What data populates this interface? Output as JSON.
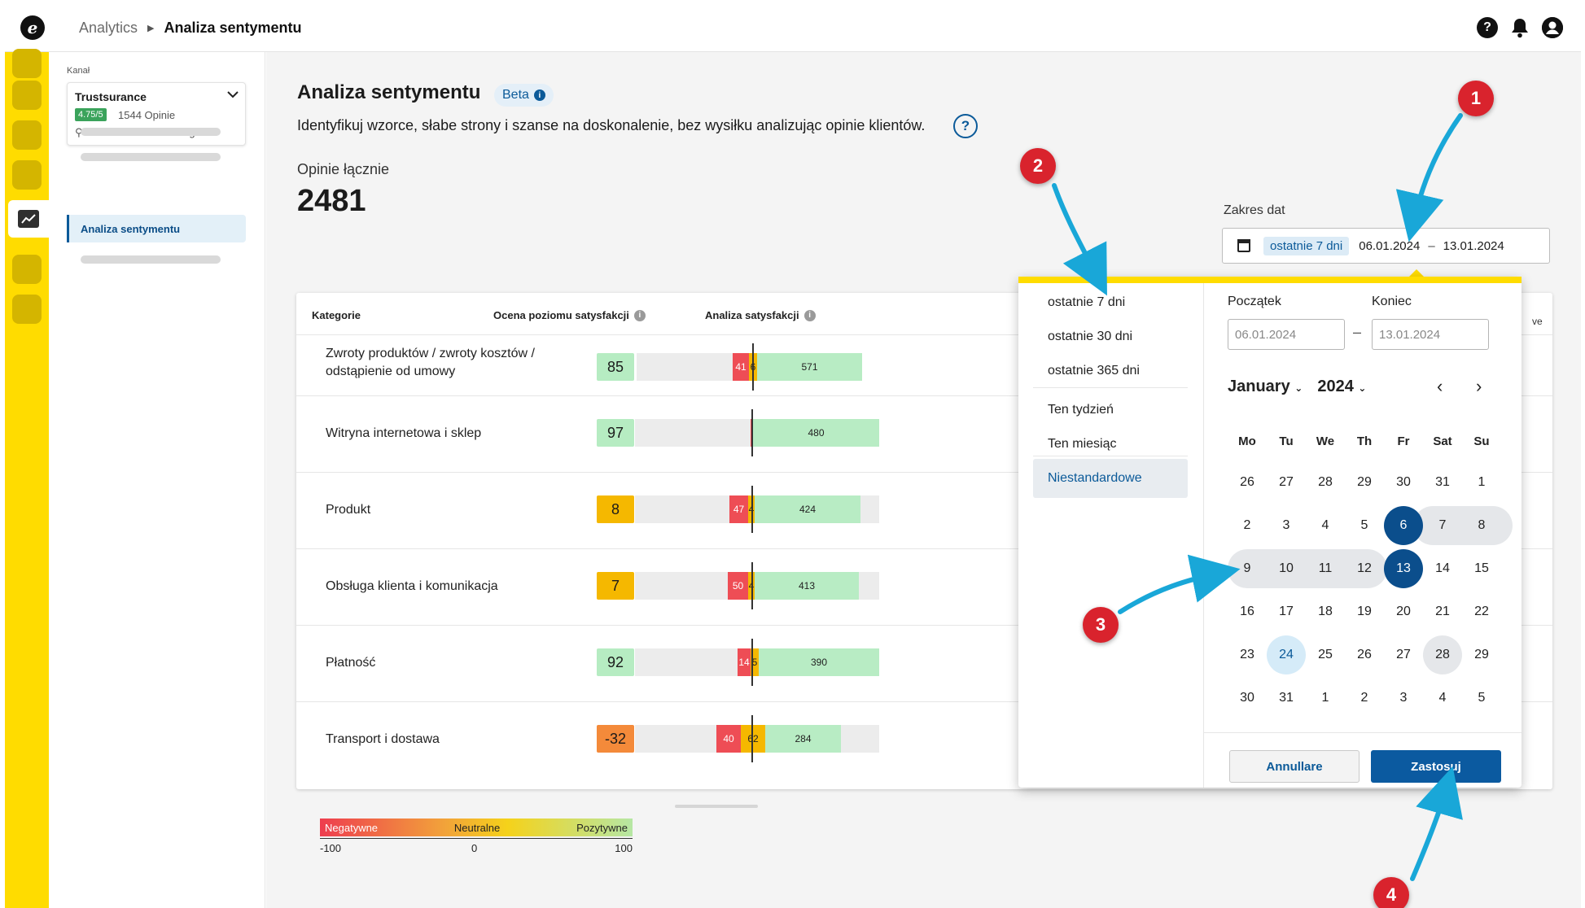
{
  "header": {
    "logo": "e",
    "breadcrumb": {
      "parent": "Analytics",
      "current": "Analiza sentymentu"
    },
    "icons": [
      "help-icon",
      "bell-icon",
      "user-icon"
    ]
  },
  "sidebar": {
    "channel_label": "Kanał",
    "channel": {
      "name": "Trustsurance",
      "rating": "4.75/5",
      "reviews": "1544 Opinie",
      "address": "Truststreet 15C - Cologne"
    },
    "active_item": "Analiza sentymentu"
  },
  "page": {
    "title": "Analiza sentymentu",
    "badge": "Beta",
    "subtitle": "Identyfikuj wzorce, słabe strony i szanse na doskonalenie, bez wysiłku analizując opinie klientów.",
    "total_label": "Opinie łącznie",
    "total_value": "2481"
  },
  "date_range": {
    "label": "Zakres dat",
    "preset": "ostatnie 7 dni",
    "start": "06.01.2024",
    "dash": "–",
    "end": "13.01.2024"
  },
  "table": {
    "headers": {
      "category": "Kategorie",
      "score": "Ocena poziomu satysfakcji",
      "analysis": "Analiza satysfakcji",
      "hidden_edge": "ve"
    },
    "rows": [
      {
        "name": "Zwroty produktów / zwroty kosztów / odstąpienie od umowy",
        "score": "85",
        "score_color": "#b6ecc2",
        "neg": "41",
        "neu": "6",
        "pos": "571"
      },
      {
        "name": "Witryna internetowa i sklep",
        "score": "97",
        "score_color": "#b6ecc2",
        "neg": "",
        "neu": "",
        "pos": "480"
      },
      {
        "name": "Produkt",
        "score": "8",
        "score_color": "#f5b800",
        "neg": "47",
        "neu": "4",
        "pos": "424"
      },
      {
        "name": "Obsługa klienta i komunikacja",
        "score": "7",
        "score_color": "#f5b800",
        "neg": "50",
        "neu": "4",
        "pos": "413"
      },
      {
        "name": "Płatność",
        "score": "92",
        "score_color": "#b6ecc2",
        "neg": "14",
        "neu": "5",
        "pos": "390"
      },
      {
        "name": "Transport i dostawa",
        "score": "-32",
        "score_color": "#f48a3a",
        "neg": "40",
        "neu": "62",
        "pos": "284"
      }
    ]
  },
  "legend": {
    "negative": "Negatywne",
    "neutral": "Neutralne",
    "positive": "Pozytywne",
    "min": "-100",
    "mid": "0",
    "max": "100"
  },
  "datepicker": {
    "presets": [
      "ostatnie 7 dni",
      "ostatnie 30 dni",
      "ostatnie 365 dni",
      "Ten tydzień",
      "Ten miesiąc",
      "Niestandardowe"
    ],
    "active_preset": "Niestandardowe",
    "start_label": "Początek",
    "end_label": "Koniec",
    "start_placeholder": "06.01.2024",
    "end_placeholder": "13.01.2024",
    "month": "January",
    "year": "2024",
    "prev": "‹",
    "next": "›",
    "weekdays": [
      "Mo",
      "Tu",
      "We",
      "Th",
      "Fr",
      "Sat",
      "Su"
    ],
    "weeks": [
      [
        "26",
        "27",
        "28",
        "29",
        "30",
        "31",
        "1"
      ],
      [
        "2",
        "3",
        "4",
        "5",
        "6",
        "7",
        "8"
      ],
      [
        "9",
        "10",
        "11",
        "12",
        "13",
        "14",
        "15"
      ],
      [
        "16",
        "17",
        "18",
        "19",
        "20",
        "21",
        "22"
      ],
      [
        "23",
        "24",
        "25",
        "26",
        "27",
        "28",
        "29"
      ],
      [
        "30",
        "31",
        "1",
        "2",
        "3",
        "4",
        "5"
      ]
    ],
    "selected_start": "6",
    "selected_end": "13",
    "today": "24",
    "hover": "28",
    "cancel": "Annullare",
    "apply": "Zastosuj"
  },
  "annotations": [
    "1",
    "2",
    "3",
    "4"
  ],
  "colors": {
    "brand_yellow": "#ffdc00",
    "primary_blue": "#0b5a99",
    "negative": "#ee4d55",
    "neutral": "#f5b800",
    "positive": "#b8ecc4",
    "annotation_red": "#d9232d",
    "annotation_arrow": "#19a7d8"
  }
}
